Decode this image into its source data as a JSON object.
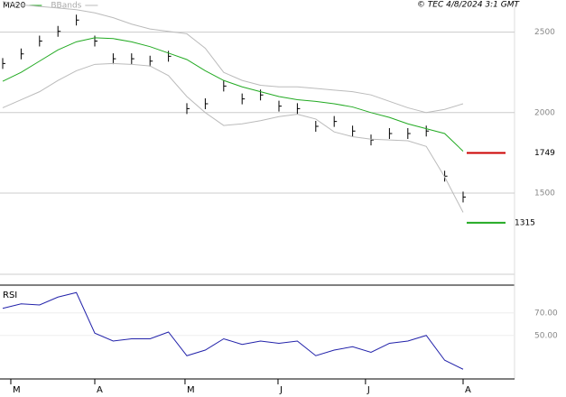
{
  "chart_data": [
    {
      "type": "ohlc-line",
      "legend": [
        {
          "name": "MA20",
          "color": "#22aa22"
        },
        {
          "name": "BBands",
          "color": "#bbbbbb"
        }
      ],
      "annotation": "© TEC 4/8/2024 3:1 GMT",
      "series": [
        {
          "name": "Close",
          "color": "#000000",
          "values": [
            2305,
            2365,
            2445,
            2505,
            2575,
            2445,
            2335,
            2335,
            2320,
            2350,
            2025,
            2055,
            2165,
            2085,
            2110,
            2040,
            2025,
            1915,
            1945,
            1885,
            1830,
            1870,
            1870,
            1885,
            1605,
            1475
          ]
        },
        {
          "name": "MA20",
          "color": "#22aa22",
          "values": [
            2195,
            2250,
            2320,
            2390,
            2440,
            2465,
            2460,
            2440,
            2410,
            2370,
            2330,
            2260,
            2200,
            2160,
            2130,
            2100,
            2080,
            2070,
            2055,
            2035,
            2000,
            1970,
            1930,
            1900,
            1870,
            1760
          ]
        },
        {
          "name": "BBands",
          "color": "#bbbbbb",
          "values": [
            2690,
            2670,
            2660,
            2650,
            2640,
            2620,
            2590,
            2550,
            2520,
            2505,
            2490,
            2400,
            2250,
            2200,
            2170,
            2160,
            2160,
            2150,
            2140,
            2130,
            2110,
            2070,
            2030,
            2000,
            2020,
            2055
          ]
        },
        {
          "name": "BBands",
          "color": "#bbbbbb",
          "values": [
            2030,
            2080,
            2130,
            2200,
            2260,
            2300,
            2305,
            2300,
            2290,
            2230,
            2100,
            2000,
            1920,
            1930,
            1950,
            1975,
            1990,
            1960,
            1880,
            1850,
            1835,
            1830,
            1825,
            1790,
            1600,
            1380
          ]
        }
      ],
      "levels": [
        {
          "value": 1749,
          "color": "#cc0000"
        },
        {
          "value": 1315,
          "color": "#22aa22"
        }
      ],
      "ylim": [
        950,
        2700
      ],
      "yticks": [
        1500,
        2000,
        2500
      ],
      "grid": true,
      "xlim": [
        0,
        25
      ],
      "xticks": [
        {
          "value": 0.44,
          "label": "M"
        },
        {
          "value": 5,
          "label": "A"
        },
        {
          "value": 9.9,
          "label": "M"
        },
        {
          "value": 14.95,
          "label": "J"
        },
        {
          "value": 19.7,
          "label": "J"
        },
        {
          "value": 25,
          "label": "A"
        }
      ]
    },
    {
      "type": "line",
      "title": "RSI",
      "series": [
        {
          "name": "RSI",
          "color": "#2222aa",
          "values": [
            74,
            78,
            77,
            84,
            88,
            52,
            45,
            47,
            47,
            53,
            32,
            37,
            47,
            42,
            45,
            43,
            45,
            32,
            37,
            40,
            35,
            43,
            45,
            50,
            28,
            20
          ]
        }
      ],
      "ylim": [
        13,
        93
      ],
      "yticks": [
        {
          "value": 50,
          "label": "50.00"
        },
        {
          "value": 70,
          "label": "70.00"
        }
      ]
    }
  ]
}
